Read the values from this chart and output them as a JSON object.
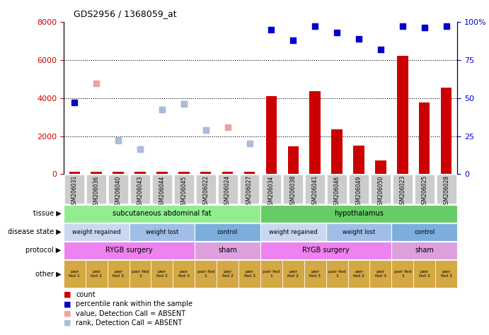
{
  "title": "GDS2956 / 1368059_at",
  "samples": [
    "GSM206031",
    "GSM206036",
    "GSM206040",
    "GSM206043",
    "GSM206044",
    "GSM206045",
    "GSM206022",
    "GSM206024",
    "GSM206027",
    "GSM206034",
    "GSM206038",
    "GSM206041",
    "GSM206046",
    "GSM206049",
    "GSM206050",
    "GSM206023",
    "GSM206025",
    "GSM206028"
  ],
  "count_values": [
    120,
    120,
    120,
    120,
    120,
    120,
    120,
    120,
    120,
    4100,
    1450,
    4350,
    2350,
    1520,
    720,
    6200,
    3750,
    4550
  ],
  "percentile_values": [
    47,
    null,
    null,
    null,
    null,
    null,
    null,
    null,
    null,
    95,
    88,
    97,
    93,
    89,
    82,
    97,
    96,
    97
  ],
  "absent_value": [
    null,
    4750,
    1800,
    1300,
    3400,
    3700,
    2300,
    2450,
    1600,
    null,
    null,
    null,
    null,
    null,
    null,
    null,
    null,
    null
  ],
  "absent_rank": [
    null,
    null,
    1750,
    1300,
    3400,
    3700,
    2300,
    null,
    1600,
    null,
    null,
    null,
    null,
    null,
    null,
    null,
    null,
    null
  ],
  "ylim_left": [
    0,
    8000
  ],
  "ylim_right": [
    0,
    100
  ],
  "yticks_left": [
    0,
    2000,
    4000,
    6000,
    8000
  ],
  "yticks_right": [
    0,
    25,
    50,
    75,
    100
  ],
  "tissue_groups": [
    {
      "label": "subcutaneous abdominal fat",
      "start": 0,
      "end": 9,
      "color": "#90EE90"
    },
    {
      "label": "hypothalamus",
      "start": 9,
      "end": 18,
      "color": "#66CC66"
    }
  ],
  "disease_state_groups": [
    {
      "label": "weight regained",
      "start": 0,
      "end": 3,
      "color": "#C8D8F0"
    },
    {
      "label": "weight lost",
      "start": 3,
      "end": 6,
      "color": "#A0BEE8"
    },
    {
      "label": "control",
      "start": 6,
      "end": 9,
      "color": "#7BAEDD"
    },
    {
      "label": "weight regained",
      "start": 9,
      "end": 12,
      "color": "#C8D8F0"
    },
    {
      "label": "weight lost",
      "start": 12,
      "end": 15,
      "color": "#A0BEE8"
    },
    {
      "label": "control",
      "start": 15,
      "end": 18,
      "color": "#7BAEDD"
    }
  ],
  "protocol_groups": [
    {
      "label": "RYGB surgery",
      "start": 0,
      "end": 6,
      "color": "#EE82EE"
    },
    {
      "label": "sham",
      "start": 6,
      "end": 9,
      "color": "#DDA0DD"
    },
    {
      "label": "RYGB surgery",
      "start": 9,
      "end": 15,
      "color": "#EE82EE"
    },
    {
      "label": "sham",
      "start": 15,
      "end": 18,
      "color": "#DDA0DD"
    }
  ],
  "other_cells": [
    {
      "label": "pair\nfed 1",
      "start": 0,
      "end": 1
    },
    {
      "label": "pair\nfed 2",
      "start": 1,
      "end": 2
    },
    {
      "label": "pair\nfed 3",
      "start": 2,
      "end": 3
    },
    {
      "label": "pair fed\n1",
      "start": 3,
      "end": 4
    },
    {
      "label": "pair\nfed 2",
      "start": 4,
      "end": 5
    },
    {
      "label": "pair\nfed 3",
      "start": 5,
      "end": 6
    },
    {
      "label": "pair fed\n1",
      "start": 6,
      "end": 7
    },
    {
      "label": "pair\nfed 2",
      "start": 7,
      "end": 8
    },
    {
      "label": "pair\nfed 3",
      "start": 8,
      "end": 9
    },
    {
      "label": "pair fed\n1",
      "start": 9,
      "end": 10
    },
    {
      "label": "pair\nfed 2",
      "start": 10,
      "end": 11
    },
    {
      "label": "pair\nfed 3",
      "start": 11,
      "end": 12
    },
    {
      "label": "pair fed\n1",
      "start": 12,
      "end": 13
    },
    {
      "label": "pair\nfed 2",
      "start": 13,
      "end": 14
    },
    {
      "label": "pair\nfed 3",
      "start": 14,
      "end": 15
    },
    {
      "label": "pair fed\n1",
      "start": 15,
      "end": 16
    },
    {
      "label": "pair\nfed 2",
      "start": 16,
      "end": 17
    },
    {
      "label": "pair\nfed 3",
      "start": 17,
      "end": 18
    }
  ],
  "other_color": "#D4A843",
  "bar_color": "#CC0000",
  "percentile_color": "#0000CC",
  "absent_value_color": "#F0A0A0",
  "absent_rank_color": "#AABBDD",
  "grid_color": "#000000",
  "label_color_left": "#CC0000",
  "label_color_right": "#0000CC",
  "xtick_bg": "#CCCCCC",
  "row_labels": [
    "tissue",
    "disease state",
    "protocol",
    "other"
  ],
  "legend_items": [
    {
      "color": "#CC0000",
      "label": "count"
    },
    {
      "color": "#0000CC",
      "label": "percentile rank within the sample"
    },
    {
      "color": "#F0A0A0",
      "label": "value, Detection Call = ABSENT"
    },
    {
      "color": "#AABBDD",
      "label": "rank, Detection Call = ABSENT"
    }
  ]
}
